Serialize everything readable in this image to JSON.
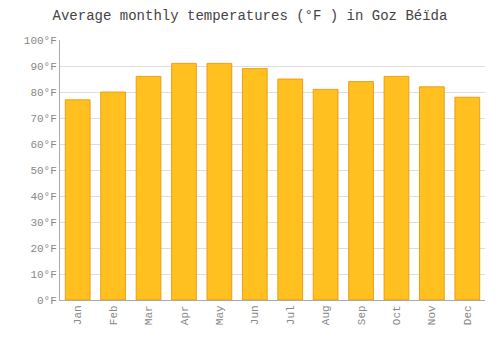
{
  "chart_data": {
    "type": "bar",
    "title": "Average monthly temperatures (°F ) in Goz Béïda",
    "categories": [
      "Jan",
      "Feb",
      "Mar",
      "Apr",
      "May",
      "Jun",
      "Jul",
      "Aug",
      "Sep",
      "Oct",
      "Nov",
      "Dec"
    ],
    "values": [
      77,
      80,
      86,
      91,
      91,
      89,
      85,
      81,
      84,
      86,
      82,
      78
    ],
    "color": "#FFC020",
    "ylim": [
      0,
      100
    ],
    "yticks": [
      {
        "value": 0,
        "label": "0°F"
      },
      {
        "value": 10,
        "label": "10°F"
      },
      {
        "value": 20,
        "label": "20°F"
      },
      {
        "value": 30,
        "label": "30°F"
      },
      {
        "value": 40,
        "label": "40°F"
      },
      {
        "value": 50,
        "label": "50°F"
      },
      {
        "value": 60,
        "label": "60°F"
      },
      {
        "value": 70,
        "label": "70°F"
      },
      {
        "value": 80,
        "label": "80°F"
      },
      {
        "value": 90,
        "label": "90°F"
      },
      {
        "value": 100,
        "label": "100°F"
      }
    ],
    "grid": true
  }
}
